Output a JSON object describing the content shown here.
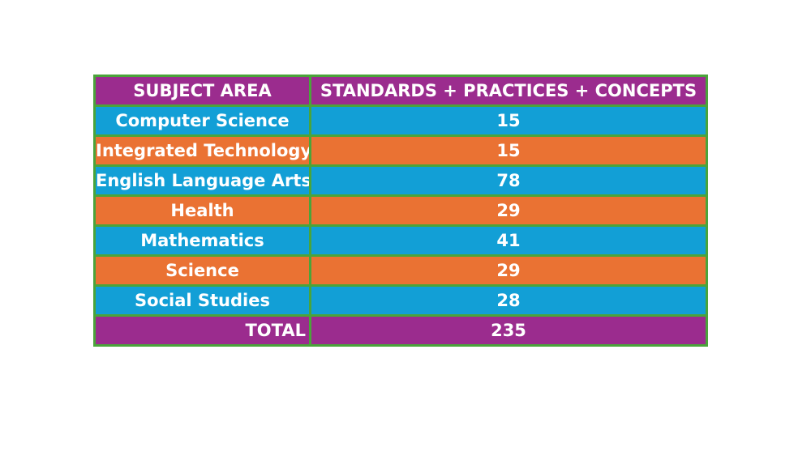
{
  "table": {
    "headers": [
      "SUBJECT AREA",
      "STANDARDS + PRACTICES + CONCEPTS"
    ],
    "rows": [
      {
        "subject": "Computer Science",
        "count": "15"
      },
      {
        "subject": "Integrated Technology",
        "count": "15"
      },
      {
        "subject": "English Language Arts",
        "count": "78"
      },
      {
        "subject": "Health",
        "count": "29"
      },
      {
        "subject": "Mathematics",
        "count": "41"
      },
      {
        "subject": "Science",
        "count": "29"
      },
      {
        "subject": "Social Studies",
        "count": "28"
      }
    ],
    "total": {
      "label": "TOTAL",
      "count": "235"
    }
  },
  "colors": {
    "header_bg": "#9b2c8e",
    "row_blue": "#129fd6",
    "row_orange": "#ea7233",
    "border": "#4aa43a",
    "text": "#ffffff"
  }
}
